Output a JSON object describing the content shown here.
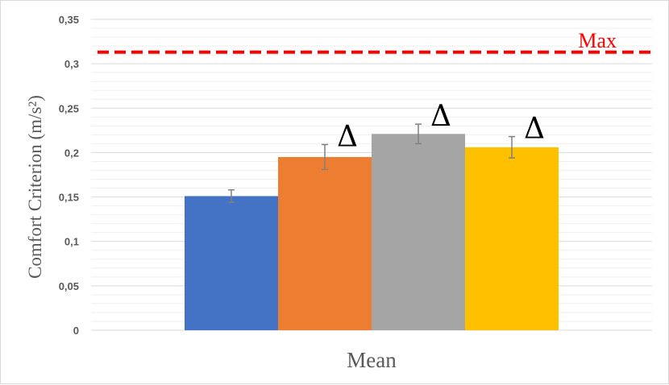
{
  "chart_data": {
    "type": "bar",
    "categories": [
      "Mean"
    ],
    "xlabel": "Mean",
    "ylabel": "Comfort Criterion (m/s²)",
    "ylim": [
      0,
      0.35
    ],
    "yticks": [
      "0",
      "0,05",
      "0,1",
      "0,15",
      "0,2",
      "0,25",
      "0,3",
      "0,35"
    ],
    "ytick_values": [
      0,
      0.05,
      0.1,
      0.15,
      0.2,
      0.25,
      0.3,
      0.35
    ],
    "grid": true,
    "series": [
      {
        "color": "#4472C4",
        "values": [
          0.151
        ],
        "error": [
          0.007
        ],
        "marker": ""
      },
      {
        "color": "#ED7D31",
        "values": [
          0.195
        ],
        "error": [
          0.014
        ],
        "marker": "Δ"
      },
      {
        "color": "#A5A5A5",
        "values": [
          0.221
        ],
        "error": [
          0.011
        ],
        "marker": "Δ"
      },
      {
        "color": "#FFC000",
        "values": [
          0.206
        ],
        "error": [
          0.012
        ],
        "marker": "Δ"
      }
    ],
    "reference_line": {
      "label": "Max",
      "value": 0.313,
      "color": "#FF0000"
    }
  }
}
